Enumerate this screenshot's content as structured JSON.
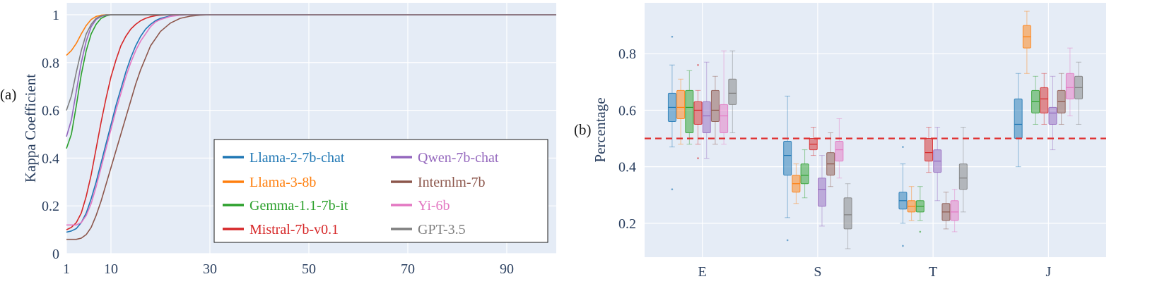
{
  "panels": {
    "a": {
      "label": "(a)"
    },
    "b": {
      "label": "(b)"
    }
  },
  "chart_data": [
    {
      "type": "line",
      "ylabel": "Kappa Coefficient",
      "xlabel": "",
      "xlim": [
        1,
        100
      ],
      "ylim": [
        0,
        1.05
      ],
      "xticks": [
        1,
        10,
        30,
        50,
        70,
        90
      ],
      "yticks": [
        0,
        0.2,
        0.4,
        0.6,
        0.8,
        1
      ],
      "ytick_labels": [
        "0",
        "0.2",
        "0.4",
        "0.6",
        "0.8",
        "1"
      ],
      "grid": true,
      "background": "#e5ecf6",
      "legend_position": "bottom-right",
      "x": [
        1,
        2,
        3,
        4,
        5,
        6,
        7,
        8,
        9,
        10,
        11,
        12,
        13,
        14,
        15,
        16,
        17,
        18,
        19,
        20,
        22,
        24,
        26,
        28,
        30,
        35,
        40,
        50,
        60,
        70,
        80,
        90,
        100
      ],
      "series": [
        {
          "name": "Llama-2-7b-chat",
          "color": "#1f77b4",
          "values": [
            0.09,
            0.095,
            0.105,
            0.13,
            0.17,
            0.23,
            0.3,
            0.38,
            0.46,
            0.54,
            0.62,
            0.69,
            0.76,
            0.82,
            0.87,
            0.91,
            0.94,
            0.96,
            0.975,
            0.985,
            0.995,
            0.998,
            1,
            1,
            1,
            1,
            1,
            1,
            1,
            1,
            1,
            1,
            1
          ]
        },
        {
          "name": "Llama-3-8b",
          "color": "#ff7f0e",
          "values": [
            0.83,
            0.85,
            0.88,
            0.92,
            0.955,
            0.98,
            0.993,
            0.998,
            1,
            1,
            1,
            1,
            1,
            1,
            1,
            1,
            1,
            1,
            1,
            1,
            1,
            1,
            1,
            1,
            1,
            1,
            1,
            1,
            1,
            1,
            1,
            1,
            1
          ]
        },
        {
          "name": "Gemma-1.1-7b-it",
          "color": "#2ca02c",
          "values": [
            0.44,
            0.5,
            0.62,
            0.75,
            0.85,
            0.92,
            0.96,
            0.985,
            0.995,
            1,
            1,
            1,
            1,
            1,
            1,
            1,
            1,
            1,
            1,
            1,
            1,
            1,
            1,
            1,
            1,
            1,
            1,
            1,
            1,
            1,
            1,
            1,
            1
          ]
        },
        {
          "name": "Mistral-7b-v0.1",
          "color": "#d62728",
          "values": [
            0.1,
            0.11,
            0.13,
            0.17,
            0.24,
            0.33,
            0.44,
            0.55,
            0.65,
            0.74,
            0.81,
            0.87,
            0.91,
            0.94,
            0.96,
            0.975,
            0.985,
            0.992,
            0.996,
            0.998,
            1,
            1,
            1,
            1,
            1,
            1,
            1,
            1,
            1,
            1,
            1,
            1,
            1
          ]
        },
        {
          "name": "Qwen-7b-chat",
          "color": "#9467bd",
          "values": [
            0.49,
            0.56,
            0.68,
            0.8,
            0.89,
            0.95,
            0.98,
            0.993,
            0.998,
            1,
            1,
            1,
            1,
            1,
            1,
            1,
            1,
            1,
            1,
            1,
            1,
            1,
            1,
            1,
            1,
            1,
            1,
            1,
            1,
            1,
            1,
            1,
            1
          ]
        },
        {
          "name": "Internlm-7b",
          "color": "#8c564b",
          "values": [
            0.06,
            0.06,
            0.06,
            0.065,
            0.08,
            0.11,
            0.16,
            0.22,
            0.29,
            0.36,
            0.43,
            0.5,
            0.57,
            0.64,
            0.71,
            0.77,
            0.82,
            0.87,
            0.9,
            0.93,
            0.965,
            0.985,
            0.994,
            0.998,
            1,
            1,
            1,
            1,
            1,
            1,
            1,
            1,
            1
          ]
        },
        {
          "name": "Yi-6b",
          "color": "#e377c2",
          "values": [
            0.12,
            0.12,
            0.12,
            0.13,
            0.16,
            0.21,
            0.28,
            0.36,
            0.44,
            0.52,
            0.6,
            0.67,
            0.74,
            0.8,
            0.85,
            0.89,
            0.92,
            0.95,
            0.97,
            0.98,
            0.993,
            0.998,
            1,
            1,
            1,
            1,
            1,
            1,
            1,
            1,
            1,
            1,
            1
          ]
        },
        {
          "name": "GPT-3.5",
          "color": "#7f7f7f",
          "values": [
            0.6,
            0.66,
            0.76,
            0.85,
            0.92,
            0.96,
            0.985,
            0.995,
            1,
            1,
            1,
            1,
            1,
            1,
            1,
            1,
            1,
            1,
            1,
            1,
            1,
            1,
            1,
            1,
            1,
            1,
            1,
            1,
            1,
            1,
            1,
            1,
            1
          ]
        }
      ]
    },
    {
      "type": "box",
      "ylabel": "Percentage",
      "xlabel": "",
      "categories": [
        "E",
        "S",
        "T",
        "J"
      ],
      "ylim": [
        0.08,
        0.98
      ],
      "yticks": [
        0.2,
        0.4,
        0.6,
        0.8
      ],
      "ytick_labels": [
        "0.2",
        "0.4",
        "0.6",
        "0.8"
      ],
      "grid": true,
      "background": "#e5ecf6",
      "reference_line": {
        "y": 0.5,
        "color": "#e03030",
        "style": "dashed"
      },
      "series": [
        {
          "name": "Llama-2-7b-chat",
          "color": "#1f77b4",
          "boxes": [
            {
              "min": 0.47,
              "q1": 0.56,
              "median": 0.61,
              "q3": 0.66,
              "max": 0.76,
              "outliers": [
                0.86,
                0.32
              ]
            },
            {
              "min": 0.22,
              "q1": 0.37,
              "median": 0.44,
              "q3": 0.49,
              "max": 0.65,
              "outliers": [
                0.14
              ]
            },
            {
              "min": 0.2,
              "q1": 0.25,
              "median": 0.28,
              "q3": 0.31,
              "max": 0.41,
              "outliers": [
                0.47,
                0.12
              ]
            },
            {
              "min": 0.4,
              "q1": 0.5,
              "median": 0.55,
              "q3": 0.64,
              "max": 0.73,
              "outliers": []
            }
          ]
        },
        {
          "name": "Llama-3-8b",
          "color": "#ff7f0e",
          "boxes": [
            {
              "min": 0.48,
              "q1": 0.57,
              "median": 0.61,
              "q3": 0.67,
              "max": 0.71,
              "outliers": []
            },
            {
              "min": 0.27,
              "q1": 0.31,
              "median": 0.34,
              "q3": 0.37,
              "max": 0.41,
              "outliers": []
            },
            {
              "min": 0.21,
              "q1": 0.24,
              "median": 0.26,
              "q3": 0.28,
              "max": 0.33,
              "outliers": []
            },
            {
              "min": 0.73,
              "q1": 0.82,
              "median": 0.86,
              "q3": 0.9,
              "max": 0.95,
              "outliers": []
            }
          ]
        },
        {
          "name": "Gemma-1.1-7b-it",
          "color": "#2ca02c",
          "boxes": [
            {
              "min": 0.48,
              "q1": 0.52,
              "median": 0.61,
              "q3": 0.67,
              "max": 0.74,
              "outliers": []
            },
            {
              "min": 0.29,
              "q1": 0.34,
              "median": 0.37,
              "q3": 0.41,
              "max": 0.46,
              "outliers": []
            },
            {
              "min": 0.21,
              "q1": 0.24,
              "median": 0.26,
              "q3": 0.28,
              "max": 0.33,
              "outliers": [
                0.17
              ]
            },
            {
              "min": 0.55,
              "q1": 0.59,
              "median": 0.63,
              "q3": 0.67,
              "max": 0.72,
              "outliers": []
            }
          ]
        },
        {
          "name": "Mistral-7b-v0.1",
          "color": "#d62728",
          "boxes": [
            {
              "min": 0.48,
              "q1": 0.55,
              "median": 0.6,
              "q3": 0.63,
              "max": 0.67,
              "outliers": [
                0.76,
                0.43
              ]
            },
            {
              "min": 0.44,
              "q1": 0.46,
              "median": 0.48,
              "q3": 0.5,
              "max": 0.54,
              "outliers": []
            },
            {
              "min": 0.38,
              "q1": 0.42,
              "median": 0.45,
              "q3": 0.5,
              "max": 0.54,
              "outliers": []
            },
            {
              "min": 0.55,
              "q1": 0.59,
              "median": 0.64,
              "q3": 0.68,
              "max": 0.73,
              "outliers": []
            }
          ]
        },
        {
          "name": "Qwen-7b-chat",
          "color": "#9467bd",
          "boxes": [
            {
              "min": 0.43,
              "q1": 0.52,
              "median": 0.58,
              "q3": 0.63,
              "max": 0.77,
              "outliers": []
            },
            {
              "min": 0.19,
              "q1": 0.26,
              "median": 0.32,
              "q3": 0.36,
              "max": 0.44,
              "outliers": []
            },
            {
              "min": 0.28,
              "q1": 0.38,
              "median": 0.42,
              "q3": 0.46,
              "max": 0.54,
              "outliers": []
            },
            {
              "min": 0.46,
              "q1": 0.55,
              "median": 0.59,
              "q3": 0.61,
              "max": 0.72,
              "outliers": []
            }
          ]
        },
        {
          "name": "Internlm-7b",
          "color": "#8c564b",
          "boxes": [
            {
              "min": 0.48,
              "q1": 0.56,
              "median": 0.6,
              "q3": 0.67,
              "max": 0.72,
              "outliers": []
            },
            {
              "min": 0.33,
              "q1": 0.37,
              "median": 0.41,
              "q3": 0.45,
              "max": 0.52,
              "outliers": []
            },
            {
              "min": 0.18,
              "q1": 0.21,
              "median": 0.24,
              "q3": 0.27,
              "max": 0.31,
              "outliers": []
            },
            {
              "min": 0.55,
              "q1": 0.59,
              "median": 0.63,
              "q3": 0.67,
              "max": 0.73,
              "outliers": []
            }
          ]
        },
        {
          "name": "Yi-6b",
          "color": "#e377c2",
          "boxes": [
            {
              "min": 0.48,
              "q1": 0.52,
              "median": 0.58,
              "q3": 0.62,
              "max": 0.81,
              "outliers": []
            },
            {
              "min": 0.36,
              "q1": 0.42,
              "median": 0.46,
              "q3": 0.49,
              "max": 0.57,
              "outliers": []
            },
            {
              "min": 0.17,
              "q1": 0.21,
              "median": 0.24,
              "q3": 0.28,
              "max": 0.32,
              "outliers": []
            },
            {
              "min": 0.58,
              "q1": 0.64,
              "median": 0.68,
              "q3": 0.73,
              "max": 0.82,
              "outliers": []
            }
          ]
        },
        {
          "name": "GPT-3.5",
          "color": "#7f7f7f",
          "boxes": [
            {
              "min": 0.52,
              "q1": 0.62,
              "median": 0.66,
              "q3": 0.71,
              "max": 0.81,
              "outliers": []
            },
            {
              "min": 0.11,
              "q1": 0.18,
              "median": 0.23,
              "q3": 0.29,
              "max": 0.34,
              "outliers": []
            },
            {
              "min": 0.24,
              "q1": 0.32,
              "median": 0.36,
              "q3": 0.41,
              "max": 0.54,
              "outliers": []
            },
            {
              "min": 0.55,
              "q1": 0.64,
              "median": 0.68,
              "q3": 0.72,
              "max": 0.77,
              "outliers": []
            }
          ]
        }
      ]
    }
  ]
}
